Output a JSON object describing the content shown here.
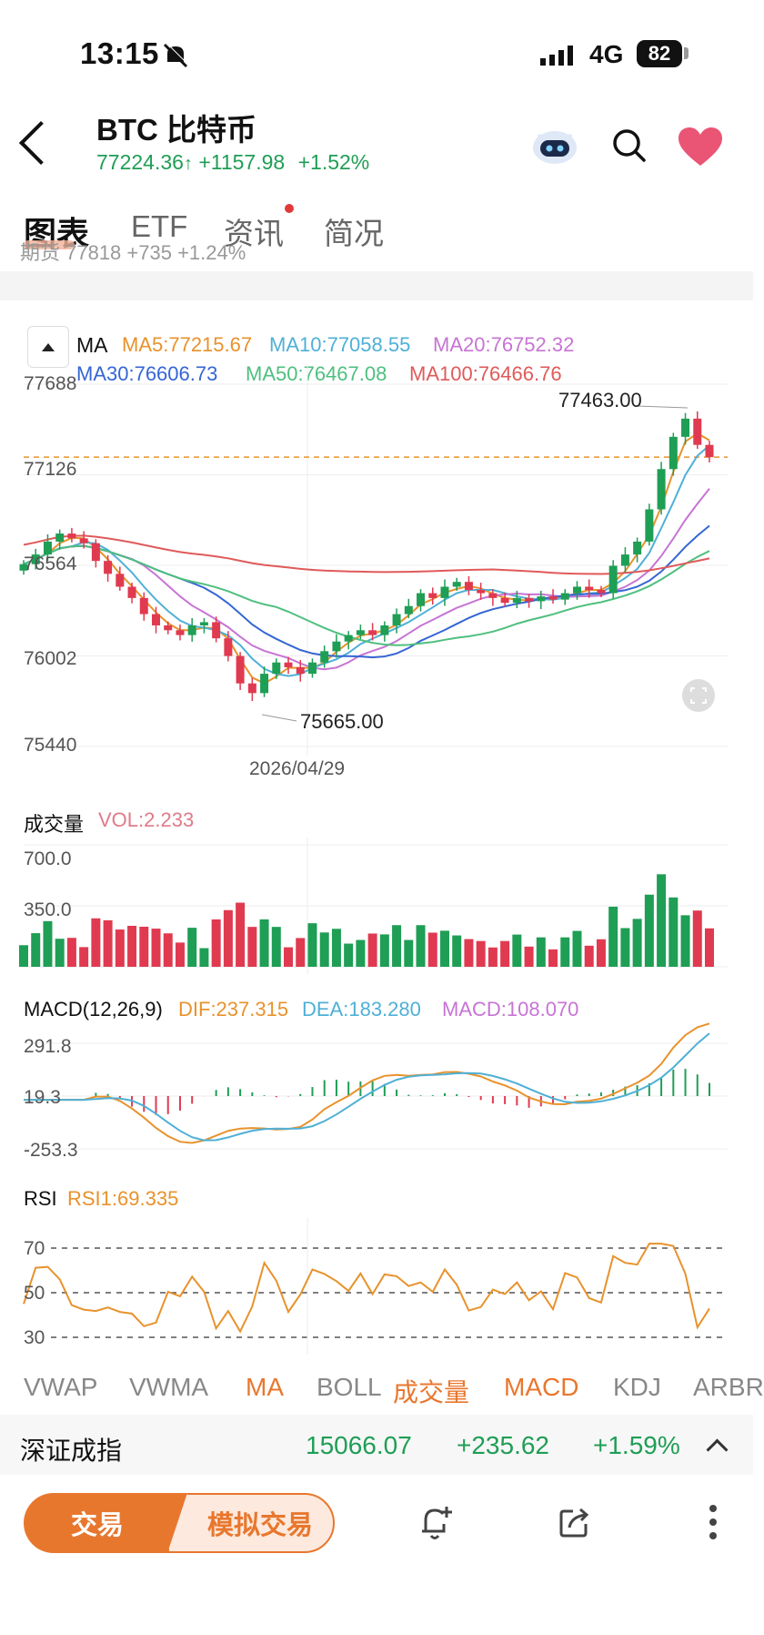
{
  "status_bar": {
    "time": "13:15",
    "network": "4G",
    "battery": "82"
  },
  "header": {
    "title": "BTC  比特币",
    "price": "77224.36",
    "change": "+1157.98",
    "change_pct": "+1.52%",
    "icons": [
      "back-icon",
      "robot-assistant-icon",
      "search-icon",
      "heart-icon"
    ]
  },
  "tabs": [
    {
      "label": "图表",
      "active": true
    },
    {
      "label": "ETF",
      "active": false
    },
    {
      "label": "资讯",
      "active": false,
      "badge": true
    },
    {
      "label": "简况",
      "active": false
    }
  ],
  "clipped_row_text": "期货 77818 +735 +1.24%",
  "main_chart": {
    "ma_label": "MA",
    "ma_values": [
      {
        "label": "MA5:77215.67",
        "color": "#e8922c"
      },
      {
        "label": "MA10:77058.55",
        "color": "#4fb0d6"
      },
      {
        "label": "MA20:76752.32",
        "color": "#c774d4"
      },
      {
        "label": "MA30:76606.73",
        "color": "#3566d4"
      },
      {
        "label": "MA50:76467.08",
        "color": "#4fbf7f"
      },
      {
        "label": "MA100:76466.76",
        "color": "#e05a5a"
      }
    ],
    "y_ticks": [
      "77688",
      "77126",
      "76564",
      "76002",
      "75440"
    ],
    "high_label": "77463.00",
    "low_label": "75665.00",
    "date_label": "2026/04/29"
  },
  "volume_panel": {
    "label": "成交量",
    "vol_label": "VOL:2.233",
    "y_ticks": [
      "700.0",
      "350.0"
    ]
  },
  "macd_panel": {
    "label": "MACD(12,26,9)",
    "dif": "DIF:237.315",
    "dea": "DEA:183.280",
    "macd": "MACD:108.070",
    "y_ticks": [
      "291.8",
      "19.3",
      "-253.3"
    ]
  },
  "rsi_panel": {
    "label": "RSI",
    "rsi1": "RSI1:69.335",
    "y_ticks": [
      "70",
      "50",
      "30"
    ]
  },
  "indicator_tabs": [
    {
      "label": "VWAP",
      "on": false
    },
    {
      "label": "VWMA",
      "on": false
    },
    {
      "label": "MA",
      "on": true
    },
    {
      "label": "BOLL",
      "on": false
    },
    {
      "label": "成交量",
      "on": true
    },
    {
      "label": "MACD",
      "on": true
    },
    {
      "label": "KDJ",
      "on": false
    },
    {
      "label": "ARBR",
      "on": false
    }
  ],
  "ticker": {
    "name": "深证成指",
    "value": "15066.07",
    "change": "+235.62",
    "pct": "+1.59%"
  },
  "bottom_bar": {
    "trade": "交易",
    "sim_trade": "模拟交易"
  },
  "colors": {
    "up": "#e03a50",
    "down": "#1f9e55",
    "accent": "#e8772e"
  },
  "chart_data": {
    "type": "candlestick",
    "price_range": [
      75440,
      77688
    ],
    "high": 77463.0,
    "low": 75665.0,
    "last": 77224.36,
    "close_path": [
      76560,
      76620,
      76700,
      76750,
      76720,
      76690,
      76580,
      76500,
      76420,
      76350,
      76250,
      76180,
      76150,
      76120,
      76180,
      76200,
      76100,
      75990,
      75820,
      75760,
      75880,
      75950,
      75920,
      75880,
      75950,
      76020,
      76080,
      76120,
      76150,
      76120,
      76180,
      76250,
      76300,
      76380,
      76350,
      76420,
      76450,
      76400,
      76380,
      76350,
      76320,
      76350,
      76330,
      76360,
      76340,
      76380,
      76420,
      76400,
      76380,
      76550,
      76620,
      76700,
      76900,
      77150,
      77350,
      77463,
      77300,
      77224
    ],
    "volume_range": [
      0,
      700
    ],
    "macd_range": [
      -253.3,
      291.8
    ],
    "rsi_range": [
      30,
      70
    ]
  }
}
